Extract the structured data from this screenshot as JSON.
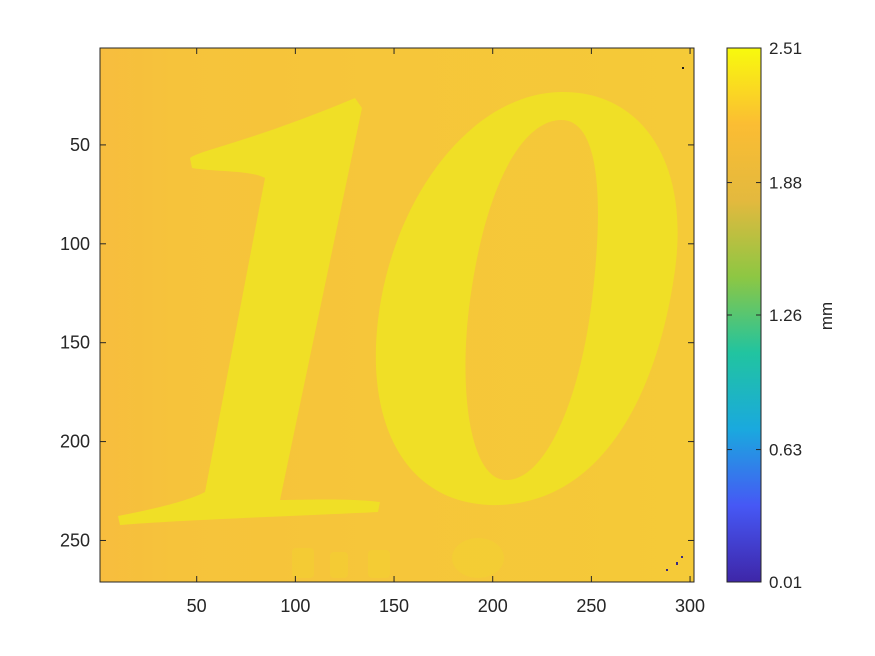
{
  "chart_data": {
    "type": "heatmap",
    "title": "",
    "xlabel": "",
    "ylabel": "",
    "xlim": [
      1,
      302
    ],
    "ylim": [
      271,
      1
    ],
    "x_ticks": [
      50,
      100,
      150,
      200,
      250,
      300
    ],
    "y_ticks": [
      50,
      100,
      150,
      200,
      250
    ],
    "colorbar": {
      "label": "mm",
      "min": 0.01,
      "max": 2.51,
      "ticks": [
        0.01,
        0.63,
        1.26,
        1.88,
        2.51
      ],
      "colormap": "parula"
    },
    "image": {
      "description": "surface height map of a banknote numeral",
      "background_value": 2.25,
      "numeral_value": 2.38,
      "dark_pixels_value": 0.01
    }
  },
  "colors": {
    "background": "#f5c93a",
    "left_edge": "#f7be3d",
    "numeral": "#f0df26",
    "numeral_inner": "#f3cd33",
    "colormap_stops": [
      "#3e26a8",
      "#4658f5",
      "#1aa9de",
      "#21c4a0",
      "#8dc743",
      "#e3b93e",
      "#fbbd33",
      "#f8fa0d"
    ]
  }
}
